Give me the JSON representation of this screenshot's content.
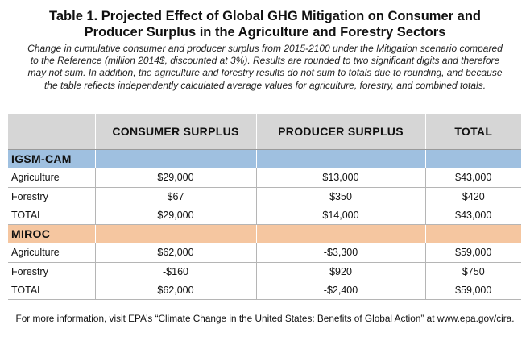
{
  "title_line1": "Table 1. Projected Effect of Global GHG Mitigation on Consumer and",
  "title_line2": "Producer Surplus in the Agriculture and Forestry Sectors",
  "subtitle_lines": [
    "Change in cumulative consumer and producer surplus from 2015-2100 under the Mitigation scenario compared",
    "to the Reference (million 2014$, discounted at 3%). Results are rounded to two significant digits and therefore",
    "may not sum. In addition, the agriculture and forestry results do not sum to totals due to rounding, and because",
    "the table reflects independently calculated average values for agriculture, forestry, and combined totals."
  ],
  "headers": [
    "",
    "CONSUMER SURPLUS",
    "PRODUCER SURPLUS",
    "TOTAL"
  ],
  "groups": [
    {
      "name": "IGSM-CAM",
      "color": "#9fc0e0",
      "rows": [
        [
          "Agriculture",
          "$29,000",
          "$13,000",
          "$43,000"
        ],
        [
          "Forestry",
          "$67",
          "$350",
          "$420"
        ],
        [
          "TOTAL",
          "$29,000",
          "$14,000",
          "$43,000"
        ]
      ]
    },
    {
      "name": "MIROC",
      "color": "#f5c6a0",
      "rows": [
        [
          "Agriculture",
          "$62,000",
          "-$3,300",
          "$59,000"
        ],
        [
          "Forestry",
          "-$160",
          "$920",
          "$750"
        ],
        [
          "TOTAL",
          "$62,000",
          "-$2,400",
          "$59,000"
        ]
      ]
    }
  ],
  "footer": "For more information, visit EPA’s “Climate Change in the United States: Benefits of Global Action” at www.epa.gov/cira."
}
